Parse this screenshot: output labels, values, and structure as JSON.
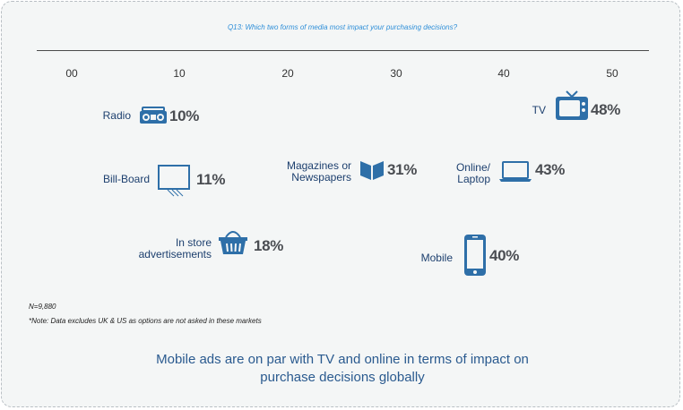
{
  "chart_data": {
    "type": "scatter",
    "title": "Q13: Which two forms of media most impact your purchasing decisions?",
    "x_ticks": [
      "00",
      "10",
      "20",
      "30",
      "40",
      "50"
    ],
    "items": [
      {
        "label": "Radio",
        "value": 10,
        "value_label": "10%",
        "icon": "radio-icon"
      },
      {
        "label": "Bill-Board",
        "value": 11,
        "value_label": "11%",
        "icon": "billboard-icon"
      },
      {
        "label": "In store advertisements",
        "value": 18,
        "value_label": "18%",
        "icon": "shopping-basket-icon"
      },
      {
        "label": "Magazines or Newspapers",
        "value": 31,
        "value_label": "31%",
        "icon": "magazine-icon"
      },
      {
        "label": "Mobile",
        "value": 40,
        "value_label": "40%",
        "icon": "smartphone-icon"
      },
      {
        "label": "Online/ Laptop",
        "value": 43,
        "value_label": "43%",
        "icon": "laptop-icon"
      },
      {
        "label": "TV",
        "value": 48,
        "value_label": "48%",
        "icon": "tv-icon"
      }
    ]
  },
  "notes": {
    "sample": "N=9,880",
    "disclaimer": "*Note: Data excludes UK & US as options are not asked in these markets"
  },
  "headline": "Mobile ads are on par with TV and online in terms of impact on purchase decisions globally",
  "colors": {
    "icon": "#2e6fa8",
    "label": "#1c3f6e",
    "value": "#4a4d52",
    "question": "#2f8fd8",
    "headline": "#2a5a8f",
    "background": "#f4f6f6"
  }
}
